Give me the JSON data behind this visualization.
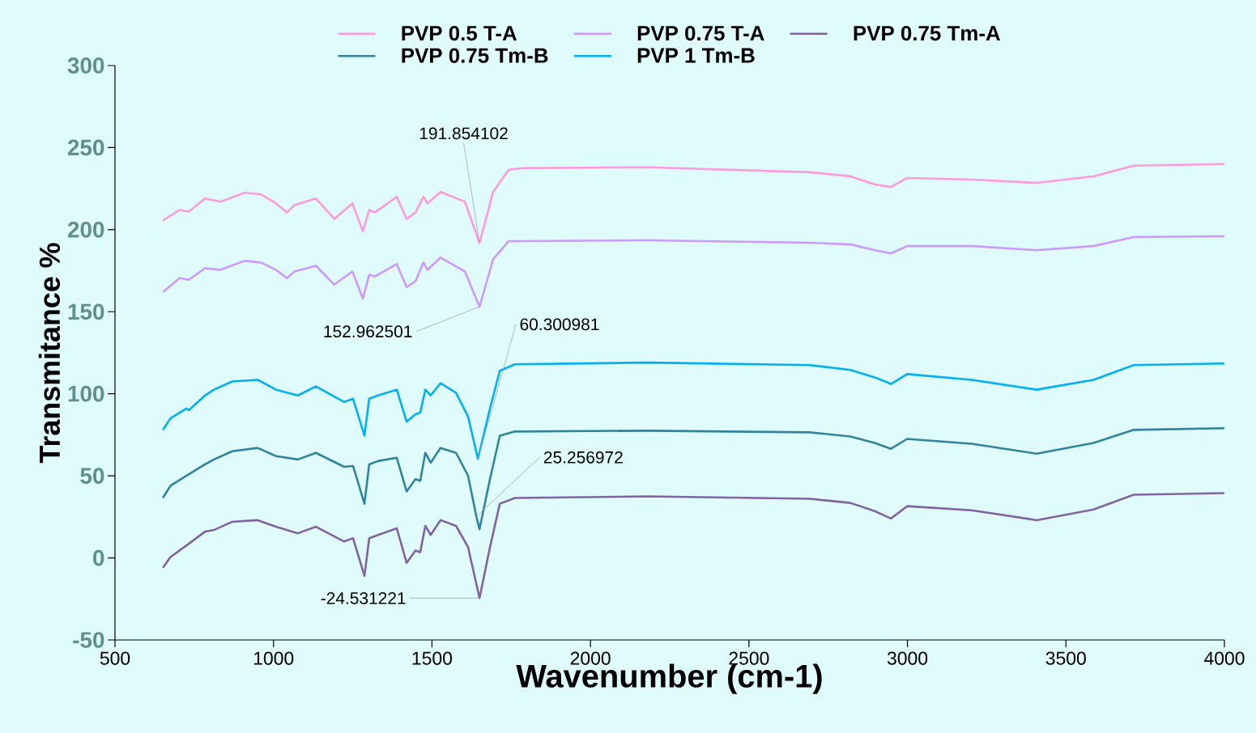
{
  "chart_data": {
    "type": "line",
    "xlabel": "Wavenumber (cm-1)",
    "ylabel": "Transmitance %",
    "xlim": [
      500,
      4000
    ],
    "xticks": [
      500,
      1000,
      1500,
      2000,
      2500,
      3000,
      3500,
      4000
    ],
    "ylim": [
      -50,
      300
    ],
    "yticks": [
      -50,
      0,
      50,
      100,
      150,
      200,
      250,
      300
    ],
    "legend": "top",
    "marker": "none",
    "line_style": "solid",
    "series": [
      {
        "name": "PVP 0.5 T-A",
        "color": "#ff99dd",
        "x": [
          651,
          704,
          733,
          784,
          832,
          909,
          960,
          1008,
          1042,
          1067,
          1134,
          1192,
          1249,
          1282,
          1302,
          1320,
          1389,
          1420,
          1448,
          1473,
          1486,
          1527,
          1604,
          1650,
          1693,
          1742,
          1790,
          2181,
          2692,
          2820,
          2897,
          2948,
          2999,
          3203,
          3408,
          3587,
          3714,
          4000
        ],
        "values": [
          205.5,
          212,
          211,
          219,
          217,
          222.5,
          221.5,
          216,
          210.5,
          215,
          219,
          206.5,
          216,
          199,
          212,
          210.5,
          220,
          206.5,
          210.5,
          220,
          216,
          223,
          217,
          191.854102,
          223,
          236.5,
          237.5,
          238,
          235,
          232.5,
          227.5,
          226,
          231.5,
          230.5,
          228.5,
          232.5,
          239,
          240
        ]
      },
      {
        "name": "PVP 0.75 T-A",
        "color": "#cc99ff",
        "x": [
          651,
          704,
          733,
          784,
          832,
          909,
          960,
          1008,
          1042,
          1067,
          1134,
          1192,
          1249,
          1282,
          1302,
          1320,
          1389,
          1420,
          1448,
          1473,
          1486,
          1527,
          1604,
          1650,
          1693,
          1742,
          1790,
          2181,
          2692,
          2820,
          2897,
          2948,
          2999,
          3203,
          3408,
          3587,
          3714,
          4000
        ],
        "values": [
          162,
          170.5,
          169.5,
          176.5,
          175.5,
          181,
          180,
          175.5,
          170.5,
          174.5,
          178,
          166.5,
          174.5,
          158,
          172.5,
          171.5,
          179,
          165,
          168.5,
          180,
          175.5,
          183,
          174.5,
          152.962501,
          182,
          193,
          193,
          193.5,
          192,
          191,
          187.5,
          185.5,
          190,
          190,
          187.5,
          190,
          195.5,
          196
        ]
      },
      {
        "name": "PVP 0.75 Tm-A",
        "color": "#8064a2",
        "x": [
          651,
          675,
          725,
          784,
          812,
          870,
          950,
          1008,
          1077,
          1134,
          1223,
          1251,
          1287,
          1302,
          1330,
          1389,
          1420,
          1448,
          1463,
          1479,
          1496,
          1527,
          1576,
          1614,
          1650,
          1683,
          1714,
          1762,
          2181,
          2692,
          2820,
          2897,
          2948,
          2999,
          3203,
          3408,
          3587,
          3714,
          4000
        ],
        "values": [
          -6,
          0.5,
          7.5,
          16,
          17,
          22,
          23,
          19,
          15,
          19,
          10,
          12,
          -11,
          12,
          14,
          18,
          -3,
          4.5,
          3.5,
          19.5,
          14,
          23,
          19.5,
          6.5,
          -24.531221,
          6.5,
          33,
          36.5,
          37.5,
          36,
          33.5,
          28.5,
          24,
          31.5,
          29,
          23,
          29.5,
          38.5,
          39.5
        ]
      },
      {
        "name": "PVP 0.75 Tm-B",
        "color": "#31849b",
        "x": [
          651,
          675,
          725,
          784,
          812,
          870,
          950,
          1008,
          1077,
          1134,
          1223,
          1251,
          1287,
          1302,
          1330,
          1389,
          1420,
          1448,
          1463,
          1479,
          1496,
          1527,
          1576,
          1614,
          1640,
          1650,
          1683,
          1714,
          1762,
          2181,
          2692,
          2820,
          2897,
          2948,
          2999,
          3203,
          3408,
          3587,
          3714,
          4000
        ],
        "values": [
          36.5,
          44,
          50,
          57,
          60,
          65,
          67,
          62,
          60,
          64,
          55.5,
          56,
          33,
          57,
          59,
          61,
          40.5,
          48,
          47,
          64,
          58,
          67,
          64,
          50,
          25.256972,
          17.5,
          48,
          74.5,
          77,
          77.5,
          76.5,
          74,
          70,
          66.5,
          72.5,
          69.5,
          63.5,
          70,
          78,
          79
        ]
      },
      {
        "name": "PVP 1 Tm-B",
        "color": "#00b0f0",
        "x": [
          651,
          675,
          725,
          733,
          784,
          812,
          870,
          950,
          1008,
          1077,
          1134,
          1223,
          1251,
          1287,
          1302,
          1330,
          1389,
          1420,
          1448,
          1463,
          1479,
          1496,
          1527,
          1576,
          1614,
          1645,
          1683,
          1714,
          1762,
          2181,
          2692,
          2820,
          2897,
          2948,
          2999,
          3203,
          3408,
          3587,
          3714,
          4000
        ],
        "values": [
          78,
          85,
          91,
          90,
          99,
          102.5,
          107.5,
          108.5,
          102.5,
          99,
          104.5,
          95,
          97,
          74.5,
          97,
          99,
          102.5,
          83,
          87.5,
          88.5,
          102.5,
          99,
          106.5,
          100.5,
          86,
          60.300981,
          91,
          114,
          118,
          119,
          117.5,
          114.5,
          110,
          106,
          112,
          108.5,
          102.5,
          108.5,
          117.5,
          118.5
        ]
      }
    ],
    "annotations": [
      {
        "text": "191.854102",
        "x": 1650,
        "y": 191.854102
      },
      {
        "text": "152.962501",
        "x": 1650,
        "y": 152.962501
      },
      {
        "text": "60.300981",
        "x": 1645,
        "y": 60.300981
      },
      {
        "text": "25.256972",
        "x": 1640,
        "y": 25.256972
      },
      {
        "text": "-24.531221",
        "x": 1650,
        "y": -24.531221
      }
    ]
  }
}
